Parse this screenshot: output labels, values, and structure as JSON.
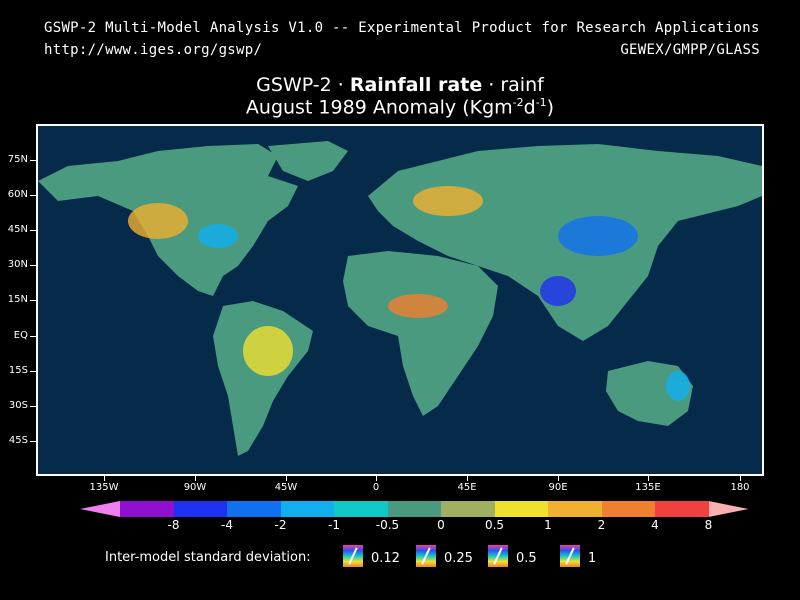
{
  "header": {
    "line1_left": "GSWP-2 Multi-Model Analysis V1.0 -- Experimental Product for Research Applications",
    "line2_left": "http://www.iges.org/gswp/",
    "line2_right": "GEWEX/GMPP/GLASS"
  },
  "title": {
    "line1_prefix": "GSWP-2 · ",
    "line1_bold": "Rainfall rate",
    "line1_suffix": " · rainf",
    "line2_text": "August 1989 Anomaly (Kgm",
    "line2_sup1": "-2",
    "line2_mid": "d",
    "line2_sup2": "-1",
    "line2_end": ")"
  },
  "map": {
    "background_color": "#062a4a",
    "land_base_color": "#4a9a80",
    "lat_labels": [
      "75N",
      "60N",
      "45N",
      "30N",
      "15N",
      "EQ",
      "15S",
      "30S",
      "45S"
    ],
    "lon_labels": [
      "135W",
      "90W",
      "45W",
      "0",
      "45E",
      "90E",
      "135E",
      "180"
    ]
  },
  "colorbar": {
    "colors": [
      "#f080f0",
      "#9010d0",
      "#2030f0",
      "#1070f0",
      "#10b0f0",
      "#10c8c8",
      "#4a9a80",
      "#a0b060",
      "#f0e030",
      "#f0b030",
      "#f08030",
      "#f04040",
      "#f8b0b0"
    ],
    "labels": [
      "-8",
      "-4",
      "-2",
      "-1",
      "-0.5",
      "0",
      "0.5",
      "1",
      "2",
      "4",
      "8"
    ]
  },
  "std_dev": {
    "label": "Inter-model standard deviation:",
    "values": [
      "0.12",
      "0.25",
      "0.5",
      "1"
    ]
  }
}
